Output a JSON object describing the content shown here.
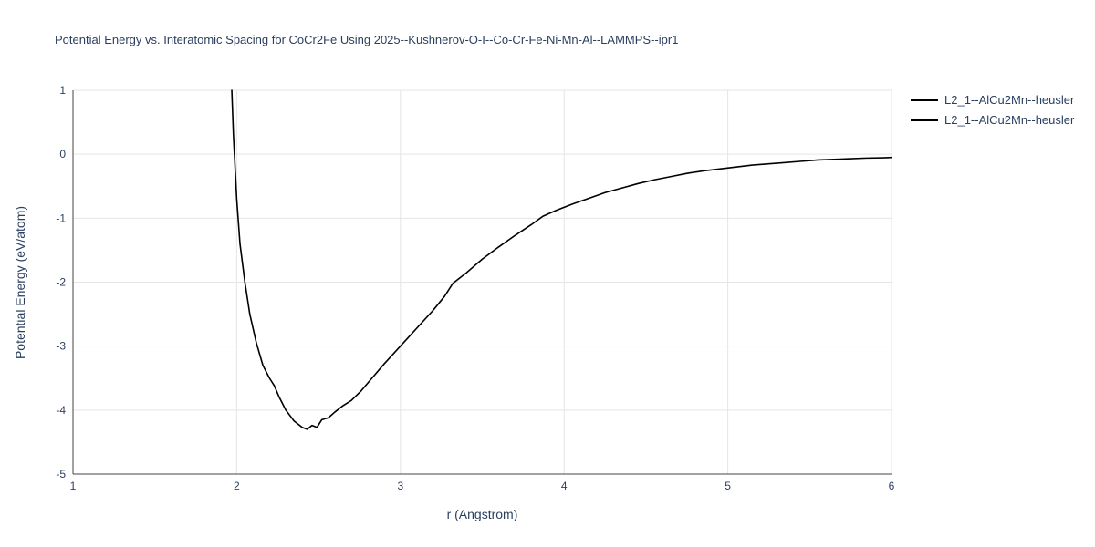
{
  "title": "Potential Energy vs. Interatomic Spacing for CoCr2Fe Using 2025--Kushnerov-O-I--Co-Cr-Fe-Ni-Mn-Al--LAMMPS--ipr1",
  "colors": {
    "text": "#2a3f5f",
    "grid": "#e5e5e5",
    "axis": "#444444",
    "line": "#000000",
    "background": "#ffffff"
  },
  "legend": {
    "entries": [
      {
        "label": "L2_1--AlCu2Mn--heusler",
        "color": "#000000"
      },
      {
        "label": "L2_1--AlCu2Mn--heusler",
        "color": "#000000"
      }
    ]
  },
  "chart_data": {
    "type": "line",
    "title": "Potential Energy vs. Interatomic Spacing for CoCr2Fe Using 2025--Kushnerov-O-I--Co-Cr-Fe-Ni-Mn-Al--LAMMPS--ipr1",
    "xlabel": "r (Angstrom)",
    "ylabel": "Potential Energy (eV/atom)",
    "xlim": [
      1,
      6
    ],
    "ylim": [
      -5,
      1
    ],
    "xticks": [
      1,
      2,
      3,
      4,
      5,
      6
    ],
    "yticks": [
      -5,
      -4,
      -3,
      -2,
      -1,
      0,
      1
    ],
    "grid": true,
    "legend_position": "top-right-outside",
    "legend_entries": [
      "L2_1--AlCu2Mn--heusler",
      "L2_1--AlCu2Mn--heusler"
    ],
    "series": [
      {
        "name": "L2_1--AlCu2Mn--heusler",
        "color": "#000000",
        "x": [
          1.97,
          1.98,
          2.0,
          2.02,
          2.05,
          2.08,
          2.12,
          2.16,
          2.2,
          2.23,
          2.26,
          2.3,
          2.35,
          2.4,
          2.43,
          2.46,
          2.49,
          2.52,
          2.56,
          2.6,
          2.65,
          2.7,
          2.76,
          2.82,
          2.9,
          3.0,
          3.1,
          3.2,
          3.27,
          3.32,
          3.4,
          3.5,
          3.6,
          3.7,
          3.8,
          3.87,
          3.95,
          4.05,
          4.15,
          4.25,
          4.35,
          4.45,
          4.55,
          4.65,
          4.75,
          4.85,
          4.95,
          5.05,
          5.15,
          5.25,
          5.35,
          5.45,
          5.55,
          5.65,
          5.75,
          5.85,
          5.95,
          6.0
        ],
        "y": [
          1.0,
          0.3,
          -0.7,
          -1.4,
          -2.0,
          -2.5,
          -2.95,
          -3.3,
          -3.5,
          -3.62,
          -3.8,
          -4.0,
          -4.17,
          -4.27,
          -4.3,
          -4.24,
          -4.27,
          -4.15,
          -4.12,
          -4.03,
          -3.93,
          -3.85,
          -3.7,
          -3.52,
          -3.28,
          -3.0,
          -2.72,
          -2.44,
          -2.22,
          -2.02,
          -1.86,
          -1.64,
          -1.45,
          -1.27,
          -1.1,
          -0.97,
          -0.88,
          -0.78,
          -0.69,
          -0.6,
          -0.53,
          -0.46,
          -0.4,
          -0.35,
          -0.3,
          -0.26,
          -0.23,
          -0.2,
          -0.17,
          -0.15,
          -0.13,
          -0.11,
          -0.09,
          -0.08,
          -0.07,
          -0.06,
          -0.055,
          -0.05
        ]
      }
    ]
  }
}
